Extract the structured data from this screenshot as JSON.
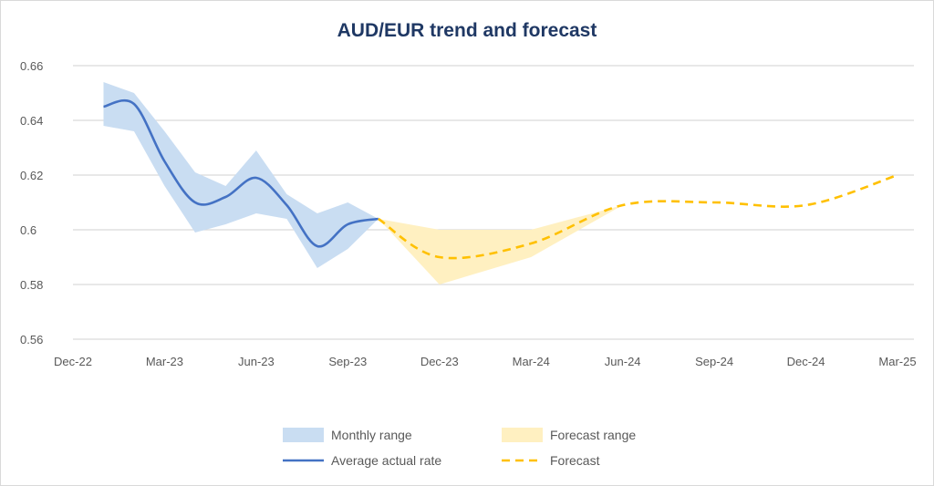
{
  "chart_data": {
    "type": "line",
    "title": "AUD/EUR trend and forecast",
    "xlabel": "",
    "ylabel": "",
    "ylim": [
      0.56,
      0.66
    ],
    "yticks": [
      "0.56",
      "0.58",
      "0.6",
      "0.62",
      "0.64",
      "0.66"
    ],
    "ytick_values": [
      0.56,
      0.58,
      0.6,
      0.62,
      0.64,
      0.66
    ],
    "xticks": [
      "Dec-22",
      "Mar-23",
      "Jun-23",
      "Sep-23",
      "Dec-23",
      "Mar-24",
      "Jun-24",
      "Sep-24",
      "Dec-24",
      "Mar-25"
    ],
    "x_unit": "months since Dec-22",
    "grid": true,
    "legend_position": "bottom",
    "series": [
      {
        "name": "Monthly range",
        "kind": "band",
        "color": "#c9ddf2",
        "x": [
          1,
          2,
          3,
          4,
          5,
          6,
          7,
          8,
          9,
          10
        ],
        "upper": [
          0.654,
          0.65,
          0.636,
          0.621,
          0.616,
          0.629,
          0.613,
          0.606,
          0.61,
          0.604
        ],
        "lower": [
          0.638,
          0.636,
          0.616,
          0.599,
          0.602,
          0.606,
          0.604,
          0.586,
          0.593,
          0.604
        ]
      },
      {
        "name": "Average actual rate",
        "kind": "line",
        "color": "#4472c4",
        "x": [
          1,
          2,
          3,
          4,
          5,
          6,
          7,
          8,
          9,
          10
        ],
        "values": [
          0.645,
          0.646,
          0.625,
          0.61,
          0.612,
          0.619,
          0.609,
          0.594,
          0.602,
          0.604
        ]
      },
      {
        "name": "Forecast range",
        "kind": "band",
        "color": "#fff0c1",
        "x": [
          10,
          12,
          15,
          18
        ],
        "upper": [
          0.604,
          0.6,
          0.6,
          0.609
        ],
        "lower": [
          0.604,
          0.58,
          0.59,
          0.609
        ]
      },
      {
        "name": "Forecast",
        "kind": "dashed",
        "color": "#ffc000",
        "x": [
          10,
          12,
          15,
          18,
          21,
          24,
          27
        ],
        "values": [
          0.604,
          0.59,
          0.595,
          0.609,
          0.61,
          0.609,
          0.62
        ]
      }
    ],
    "legend": [
      {
        "label": "Monthly range",
        "series": 0
      },
      {
        "label": "Forecast range",
        "series": 2
      },
      {
        "label": "Average actual rate",
        "series": 1
      },
      {
        "label": "Forecast",
        "series": 3
      }
    ]
  }
}
